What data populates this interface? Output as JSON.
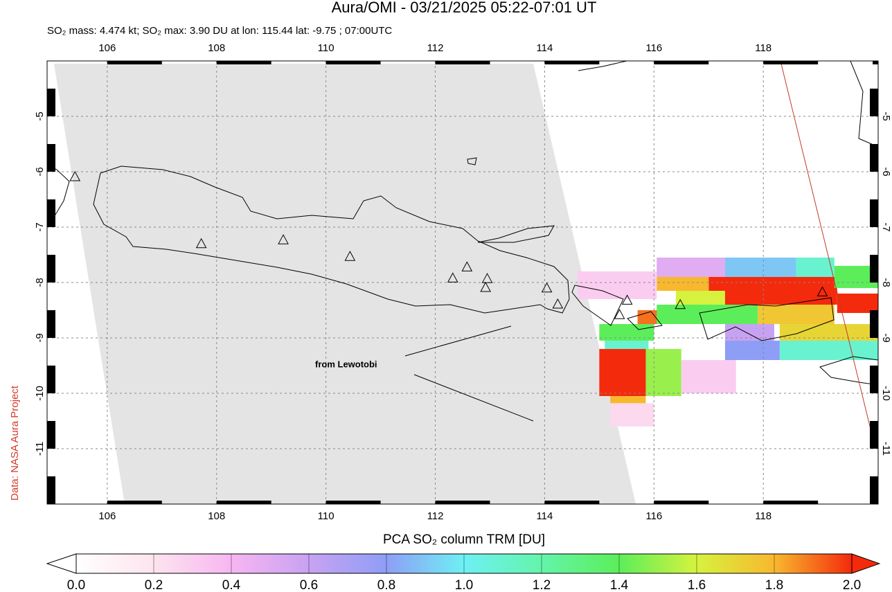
{
  "map": {
    "type": "map",
    "title": "Aura/OMI - 03/21/2025 05:22-07:01 UT",
    "subtitle": "SO₂ mass: 4.474 kt; SO₂ max: 3.90 DU at lon: 115.44 lat: -9.75 ; 07:00UTC",
    "annotation": "from Lewotobi",
    "credit": "Data: NASA Aura Project",
    "colorbar_label": "PCA SO₂ column TRM [DU]",
    "lonlim": [
      104.9,
      120.1
    ],
    "latlim": [
      -12.0,
      -4.0
    ],
    "lon_ticks": [
      106,
      108,
      110,
      112,
      114,
      116,
      118
    ],
    "lat_ticks": [
      -5,
      -6,
      -7,
      -8,
      -9,
      -10,
      -11
    ],
    "grid": true,
    "colorbar_lim": [
      0,
      2
    ],
    "colorbar_ticks": [
      {
        "value": 0,
        "label": "0.0"
      },
      {
        "value": 0.2,
        "label": "0.2"
      },
      {
        "value": 0.4,
        "label": "0.4"
      },
      {
        "value": 0.6,
        "label": "0.6"
      },
      {
        "value": 0.8,
        "label": "0.8"
      },
      {
        "value": 1,
        "label": "1.0"
      },
      {
        "value": 1.2,
        "label": "1.2"
      },
      {
        "value": 1.4,
        "label": "1.4"
      },
      {
        "value": 1.6,
        "label": "1.6"
      },
      {
        "value": 1.8,
        "label": "1.8"
      },
      {
        "value": 2,
        "label": "2.0"
      }
    ],
    "colormap": [
      "#ffffff",
      "#fde4ee",
      "#f7b6f2",
      "#c8a2f2",
      "#8e9ef6",
      "#6ef0f4",
      "#64f4aa",
      "#5cee5a",
      "#d6f23e",
      "#f8b82e",
      "#f42a0c"
    ],
    "cells": [
      [
        115.0,
        115.85,
        -9.2,
        -10.05,
        2.0
      ],
      [
        115.2,
        115.85,
        -10.05,
        -10.18,
        1.8
      ],
      [
        117.0,
        119.35,
        -7.9,
        -8.4,
        2.0
      ],
      [
        116.05,
        117.0,
        -7.9,
        -8.15,
        1.8
      ],
      [
        116.05,
        117.3,
        -7.55,
        -7.9,
        0.5
      ],
      [
        117.3,
        118.6,
        -7.55,
        -7.9,
        0.9
      ],
      [
        118.6,
        119.3,
        -7.55,
        -7.9,
        1.1
      ],
      [
        114.6,
        116.05,
        -7.8,
        -8.3,
        0.3
      ],
      [
        115.0,
        116.0,
        -8.75,
        -9.05,
        1.4
      ],
      [
        115.7,
        116.4,
        -8.5,
        -8.75,
        1.9
      ],
      [
        115.1,
        115.9,
        -9.05,
        -9.2,
        1.1
      ],
      [
        115.85,
        116.5,
        -9.2,
        -10.05,
        1.5
      ],
      [
        116.05,
        117.9,
        -8.4,
        -8.75,
        1.4
      ],
      [
        116.4,
        117.3,
        -8.15,
        -8.4,
        1.6
      ],
      [
        117.3,
        118.2,
        -8.75,
        -9.05,
        0.6
      ],
      [
        117.3,
        118.3,
        -9.05,
        -9.4,
        0.8
      ],
      [
        118.3,
        120.1,
        -8.75,
        -9.05,
        1.7
      ],
      [
        118.3,
        120.1,
        -9.05,
        -9.4,
        1.1
      ],
      [
        117.9,
        119.3,
        -8.4,
        -8.75,
        1.75
      ],
      [
        119.35,
        120.1,
        -8.2,
        -8.55,
        2.0
      ],
      [
        119.3,
        120.1,
        -7.7,
        -8.1,
        1.4
      ],
      [
        115.2,
        116.0,
        -10.18,
        -10.6,
        0.25
      ],
      [
        116.5,
        117.5,
        -9.4,
        -10.0,
        0.3
      ]
    ],
    "volcanoes": [
      [
        105.41,
        -6.1
      ],
      [
        107.72,
        -7.31
      ],
      [
        109.22,
        -7.24
      ],
      [
        110.44,
        -7.54
      ],
      [
        112.32,
        -7.93
      ],
      [
        112.58,
        -7.73
      ],
      [
        112.95,
        -7.94
      ],
      [
        112.92,
        -8.1
      ],
      [
        114.04,
        -8.11
      ],
      [
        114.24,
        -8.4
      ],
      [
        115.37,
        -8.59
      ],
      [
        115.51,
        -8.33
      ],
      [
        116.48,
        -8.41
      ],
      [
        119.08,
        -8.18
      ]
    ]
  }
}
